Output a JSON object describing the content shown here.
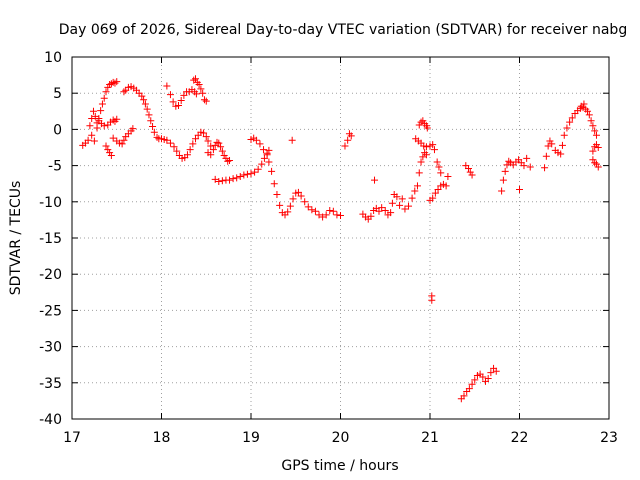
{
  "chart_data": {
    "type": "scatter",
    "title": "Day 069 of 2026, Sidereal Day-to-day VTEC variation (SDTVAR) for receiver nabg",
    "xlabel": "GPS time / hours",
    "ylabel": "SDTVAR / TECUs",
    "xlim": [
      17,
      23
    ],
    "ylim": [
      -40,
      10
    ],
    "x_ticks": [
      "17",
      "18",
      "19",
      "20",
      "21",
      "22",
      "23"
    ],
    "y_ticks": [
      "10",
      "5",
      "0",
      "-5",
      "-10",
      "-15",
      "-20",
      "-25",
      "-30",
      "-35",
      "-40"
    ],
    "marker": "+",
    "grid": true,
    "series": [
      {
        "name": "SDTVAR",
        "color": "#ff0000",
        "points": [
          [
            17.12,
            -2.2
          ],
          [
            17.15,
            -1.9
          ],
          [
            17.18,
            -1.5
          ],
          [
            17.2,
            0.5
          ],
          [
            17.22,
            1.5
          ],
          [
            17.24,
            2.5
          ],
          [
            17.26,
            1.8
          ],
          [
            17.28,
            0.9
          ],
          [
            17.3,
            1.5
          ],
          [
            17.32,
            2.6
          ],
          [
            17.34,
            3.5
          ],
          [
            17.36,
            4.3
          ],
          [
            17.38,
            5.2
          ],
          [
            17.4,
            5.8
          ],
          [
            17.42,
            6.2
          ],
          [
            17.44,
            6.3
          ],
          [
            17.46,
            6.5
          ],
          [
            17.48,
            6.4
          ],
          [
            17.5,
            6.6
          ],
          [
            17.22,
            -0.8
          ],
          [
            17.25,
            -1.6
          ],
          [
            17.28,
            0.2
          ],
          [
            17.3,
            1.2
          ],
          [
            17.33,
            0.8
          ],
          [
            17.36,
            0.5
          ],
          [
            17.38,
            -2.3
          ],
          [
            17.4,
            -2.8
          ],
          [
            17.42,
            -3.2
          ],
          [
            17.44,
            -3.6
          ],
          [
            17.4,
            0.6
          ],
          [
            17.43,
            1.0
          ],
          [
            17.46,
            1.3
          ],
          [
            17.48,
            1.1
          ],
          [
            17.5,
            1.4
          ],
          [
            17.46,
            -1.2
          ],
          [
            17.5,
            -1.6
          ],
          [
            17.53,
            -1.9
          ],
          [
            17.56,
            -2.0
          ],
          [
            17.58,
            -1.5
          ],
          [
            17.6,
            -1.0
          ],
          [
            17.63,
            -0.6
          ],
          [
            17.66,
            -0.2
          ],
          [
            17.68,
            0.1
          ],
          [
            17.58,
            5.2
          ],
          [
            17.6,
            5.4
          ],
          [
            17.63,
            5.8
          ],
          [
            17.66,
            5.9
          ],
          [
            17.69,
            5.7
          ],
          [
            17.72,
            5.4
          ],
          [
            17.75,
            5.0
          ],
          [
            17.78,
            4.6
          ],
          [
            17.8,
            4.1
          ],
          [
            17.82,
            3.5
          ],
          [
            17.84,
            2.8
          ],
          [
            17.86,
            2.0
          ],
          [
            17.88,
            1.2
          ],
          [
            17.9,
            0.4
          ],
          [
            17.92,
            -0.4
          ],
          [
            17.95,
            -1.1
          ],
          [
            17.97,
            -1.3
          ],
          [
            18.0,
            -1.3
          ],
          [
            18.03,
            -1.4
          ],
          [
            18.06,
            -1.5
          ],
          [
            18.1,
            -1.9
          ],
          [
            18.14,
            -2.4
          ],
          [
            18.17,
            -3.0
          ],
          [
            18.2,
            -3.6
          ],
          [
            18.23,
            -4.0
          ],
          [
            18.26,
            -3.9
          ],
          [
            18.29,
            -3.5
          ],
          [
            18.32,
            -2.8
          ],
          [
            18.35,
            -2.0
          ],
          [
            18.38,
            -1.3
          ],
          [
            18.41,
            -0.8
          ],
          [
            18.44,
            -0.4
          ],
          [
            18.47,
            -0.5
          ],
          [
            18.5,
            -1.0
          ],
          [
            18.52,
            -1.6
          ],
          [
            18.55,
            -2.3
          ],
          [
            18.06,
            6.0
          ],
          [
            18.1,
            4.8
          ],
          [
            18.13,
            3.8
          ],
          [
            18.16,
            3.2
          ],
          [
            18.19,
            3.3
          ],
          [
            18.22,
            4.0
          ],
          [
            18.25,
            4.7
          ],
          [
            18.28,
            5.2
          ],
          [
            18.31,
            5.2
          ],
          [
            18.34,
            5.5
          ],
          [
            18.37,
            5.2
          ],
          [
            18.39,
            4.9
          ],
          [
            18.36,
            6.8
          ],
          [
            18.38,
            7.0
          ],
          [
            18.4,
            6.5
          ],
          [
            18.42,
            6.2
          ],
          [
            18.44,
            5.6
          ],
          [
            18.46,
            5.0
          ],
          [
            18.48,
            4.1
          ],
          [
            18.5,
            3.9
          ],
          [
            18.52,
            -3.2
          ],
          [
            18.55,
            -3.5
          ],
          [
            18.58,
            -2.8
          ],
          [
            18.6,
            -2.2
          ],
          [
            18.62,
            -1.8
          ],
          [
            18.64,
            -1.9
          ],
          [
            18.66,
            -2.4
          ],
          [
            18.68,
            -3.0
          ],
          [
            18.7,
            -3.6
          ],
          [
            18.72,
            -4.0
          ],
          [
            18.74,
            -4.4
          ],
          [
            18.76,
            -4.3
          ],
          [
            18.6,
            -6.9
          ],
          [
            18.64,
            -7.2
          ],
          [
            18.68,
            -7.1
          ],
          [
            18.72,
            -7.0
          ],
          [
            18.76,
            -7.0
          ],
          [
            18.8,
            -6.8
          ],
          [
            18.84,
            -6.7
          ],
          [
            18.88,
            -6.5
          ],
          [
            18.92,
            -6.3
          ],
          [
            18.96,
            -6.2
          ],
          [
            19.0,
            -6.1
          ],
          [
            19.04,
            -5.9
          ],
          [
            19.08,
            -5.5
          ],
          [
            19.12,
            -4.8
          ],
          [
            19.15,
            -4.0
          ],
          [
            19.18,
            -3.3
          ],
          [
            19.2,
            -2.9
          ],
          [
            19.0,
            -1.4
          ],
          [
            19.03,
            -1.2
          ],
          [
            19.06,
            -1.5
          ],
          [
            19.1,
            -2.0
          ],
          [
            19.14,
            -2.8
          ],
          [
            19.18,
            -3.5
          ],
          [
            19.2,
            -4.5
          ],
          [
            19.23,
            -5.8
          ],
          [
            19.26,
            -7.5
          ],
          [
            19.29,
            -9.0
          ],
          [
            19.32,
            -10.5
          ],
          [
            19.35,
            -11.5
          ],
          [
            19.38,
            -11.8
          ],
          [
            19.41,
            -11.4
          ],
          [
            19.44,
            -10.6
          ],
          [
            19.47,
            -9.6
          ],
          [
            19.5,
            -8.8
          ],
          [
            19.53,
            -8.7
          ],
          [
            19.56,
            -9.2
          ],
          [
            19.6,
            -10.0
          ],
          [
            19.64,
            -10.7
          ],
          [
            19.68,
            -11.1
          ],
          [
            19.72,
            -11.3
          ],
          [
            19.76,
            -11.8
          ],
          [
            19.8,
            -12.1
          ],
          [
            19.84,
            -11.8
          ],
          [
            19.88,
            -11.2
          ],
          [
            19.92,
            -11.3
          ],
          [
            19.96,
            -11.8
          ],
          [
            20.0,
            -11.9
          ],
          [
            19.46,
            -1.5
          ],
          [
            20.05,
            -2.3
          ],
          [
            20.08,
            -1.5
          ],
          [
            20.1,
            -0.6
          ],
          [
            20.12,
            -0.9
          ],
          [
            20.25,
            -11.7
          ],
          [
            20.28,
            -12.1
          ],
          [
            20.31,
            -12.4
          ],
          [
            20.34,
            -12.0
          ],
          [
            20.37,
            -11.2
          ],
          [
            20.4,
            -10.9
          ],
          [
            20.43,
            -11.3
          ],
          [
            20.46,
            -10.8
          ],
          [
            20.5,
            -11.2
          ],
          [
            20.53,
            -11.8
          ],
          [
            20.56,
            -11.5
          ],
          [
            20.58,
            -10.2
          ],
          [
            20.6,
            -9.0
          ],
          [
            20.63,
            -9.3
          ],
          [
            20.66,
            -10.5
          ],
          [
            20.69,
            -9.6
          ],
          [
            20.72,
            -11.0
          ],
          [
            20.76,
            -10.6
          ],
          [
            20.8,
            -9.5
          ],
          [
            20.83,
            -8.5
          ],
          [
            20.86,
            -7.8
          ],
          [
            20.88,
            -6.0
          ],
          [
            20.9,
            -4.5
          ],
          [
            20.92,
            -3.8
          ],
          [
            20.94,
            -3.2
          ],
          [
            20.96,
            -3.5
          ],
          [
            20.38,
            -7.0
          ],
          [
            20.88,
            0.6
          ],
          [
            20.9,
            1.0
          ],
          [
            20.92,
            1.2
          ],
          [
            20.94,
            0.8
          ],
          [
            20.96,
            0.5
          ],
          [
            20.97,
            0.2
          ],
          [
            20.84,
            -1.3
          ],
          [
            20.87,
            -1.6
          ],
          [
            20.9,
            -1.9
          ],
          [
            20.93,
            -2.3
          ],
          [
            20.96,
            -2.4
          ],
          [
            21.0,
            -2.3
          ],
          [
            21.03,
            -2.1
          ],
          [
            21.05,
            -2.8
          ],
          [
            21.08,
            -4.5
          ],
          [
            21.1,
            -5.2
          ],
          [
            21.12,
            -6.0
          ],
          [
            21.0,
            -9.8
          ],
          [
            21.03,
            -9.5
          ],
          [
            21.06,
            -8.8
          ],
          [
            21.09,
            -8.3
          ],
          [
            21.12,
            -7.8
          ],
          [
            21.15,
            -7.6
          ],
          [
            21.18,
            -7.8
          ],
          [
            21.2,
            -6.5
          ],
          [
            21.02,
            -23.0
          ],
          [
            21.02,
            -23.6
          ],
          [
            21.4,
            -5.0
          ],
          [
            21.43,
            -5.4
          ],
          [
            21.45,
            -5.9
          ],
          [
            21.47,
            -6.3
          ],
          [
            21.35,
            -37.2
          ],
          [
            21.38,
            -36.8
          ],
          [
            21.41,
            -36.2
          ],
          [
            21.44,
            -35.8
          ],
          [
            21.47,
            -35.2
          ],
          [
            21.5,
            -34.6
          ],
          [
            21.53,
            -34.0
          ],
          [
            21.56,
            -33.8
          ],
          [
            21.59,
            -34.2
          ],
          [
            21.62,
            -34.8
          ],
          [
            21.65,
            -34.4
          ],
          [
            21.68,
            -33.6
          ],
          [
            21.71,
            -33.0
          ],
          [
            21.74,
            -33.4
          ],
          [
            21.8,
            -8.5
          ],
          [
            21.82,
            -7.0
          ],
          [
            21.84,
            -5.8
          ],
          [
            21.86,
            -4.9
          ],
          [
            21.88,
            -4.4
          ],
          [
            21.9,
            -4.6
          ],
          [
            21.93,
            -4.9
          ],
          [
            21.96,
            -4.5
          ],
          [
            21.99,
            -4.2
          ],
          [
            22.02,
            -4.6
          ],
          [
            22.05,
            -5.0
          ],
          [
            22.08,
            -4.0
          ],
          [
            22.12,
            -5.2
          ],
          [
            22.0,
            -8.3
          ],
          [
            22.28,
            -5.3
          ],
          [
            22.3,
            -3.7
          ],
          [
            22.32,
            -2.3
          ],
          [
            22.34,
            -1.6
          ],
          [
            22.36,
            -2.0
          ],
          [
            22.4,
            -2.9
          ],
          [
            22.43,
            -3.2
          ],
          [
            22.46,
            -3.4
          ],
          [
            22.48,
            -2.2
          ],
          [
            22.5,
            -0.8
          ],
          [
            22.53,
            0.2
          ],
          [
            22.56,
            1.0
          ],
          [
            22.59,
            1.6
          ],
          [
            22.62,
            2.2
          ],
          [
            22.65,
            2.6
          ],
          [
            22.68,
            2.9
          ],
          [
            22.71,
            3.0
          ],
          [
            22.74,
            2.8
          ],
          [
            22.76,
            2.5
          ],
          [
            22.78,
            2.0
          ],
          [
            22.8,
            1.2
          ],
          [
            22.82,
            0.5
          ],
          [
            22.84,
            -0.2
          ],
          [
            22.86,
            -0.8
          ],
          [
            22.82,
            -3.0
          ],
          [
            22.84,
            -2.4
          ],
          [
            22.86,
            -2.1
          ],
          [
            22.88,
            -2.5
          ],
          [
            22.82,
            -4.2
          ],
          [
            22.84,
            -4.6
          ],
          [
            22.86,
            -4.8
          ],
          [
            22.88,
            -5.2
          ],
          [
            22.72,
            3.5
          ],
          [
            22.69,
            3.2
          ]
        ]
      }
    ]
  }
}
